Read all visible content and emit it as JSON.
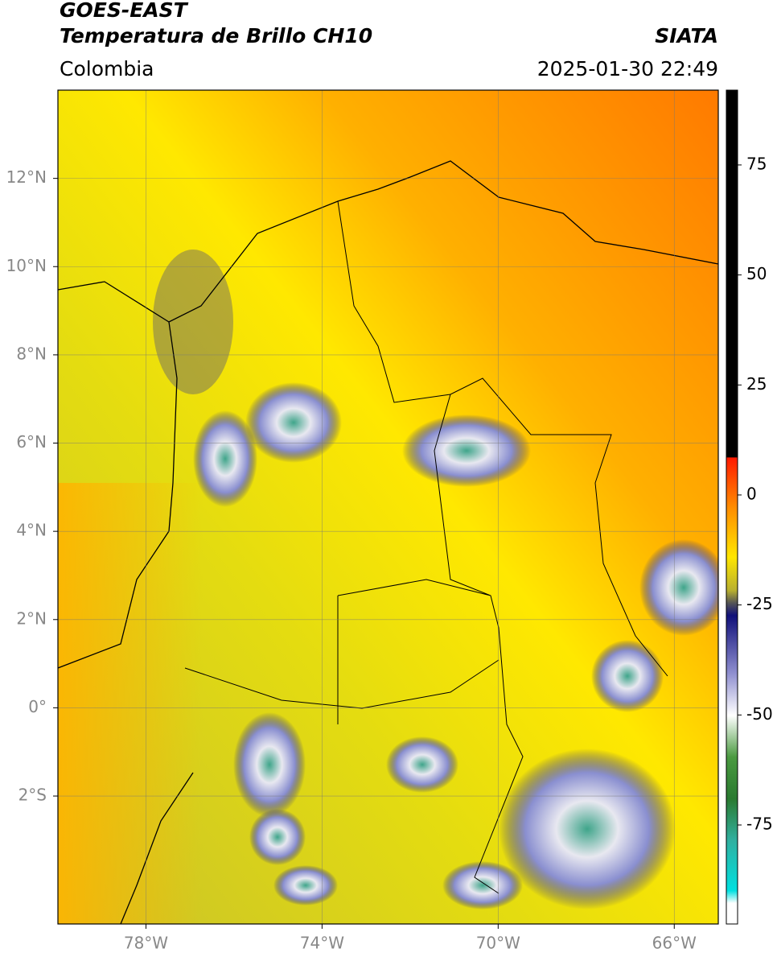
{
  "header": {
    "title": "GOES-EAST",
    "subtitle": "Temperatura de Brillo CH10",
    "source": "SIATA",
    "region": "Colombia",
    "datetime": "2025-01-30 22:49"
  },
  "map": {
    "xlim": [
      -80,
      -65
    ],
    "ylim": [
      -4.9,
      14
    ],
    "xticks": [
      {
        "value": -78,
        "label": "78°W"
      },
      {
        "value": -74,
        "label": "74°W"
      },
      {
        "value": -70,
        "label": "70°W"
      },
      {
        "value": -66,
        "label": "66°W"
      }
    ],
    "yticks": [
      {
        "value": 12,
        "label": "12°N"
      },
      {
        "value": 10,
        "label": "10°N"
      },
      {
        "value": 8,
        "label": "8°N"
      },
      {
        "value": 6,
        "label": "6°N"
      },
      {
        "value": 4,
        "label": "4°N"
      },
      {
        "value": 2,
        "label": "2°N"
      },
      {
        "value": 0,
        "label": "0°"
      },
      {
        "value": -2,
        "label": "2°S"
      }
    ],
    "grid": true
  },
  "colorbar": {
    "lim": [
      -97.5,
      92
    ],
    "ticks": [
      75,
      50,
      25,
      0,
      -25,
      -50,
      -75
    ]
  }
}
